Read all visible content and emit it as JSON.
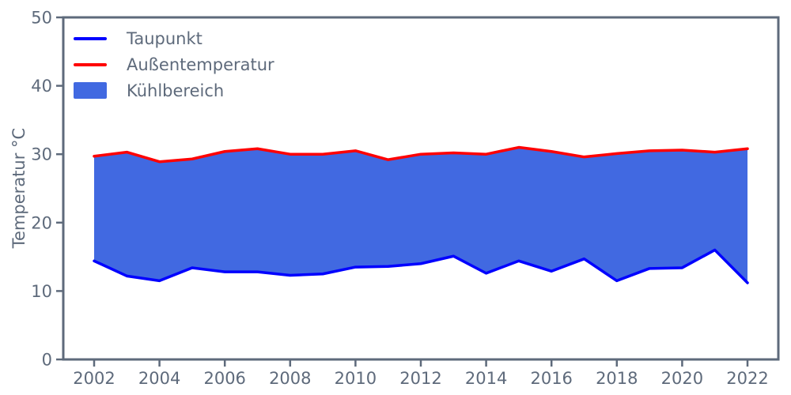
{
  "figure": {
    "background": "#ffffff",
    "axis_color": "#5e6a7b",
    "text_color": "#5e6a7b"
  },
  "chart_data": {
    "type": "area",
    "title": "",
    "xlabel": "",
    "ylabel": "Temperatur °C",
    "x": [
      2002,
      2003,
      2004,
      2005,
      2006,
      2007,
      2008,
      2009,
      2010,
      2011,
      2012,
      2013,
      2014,
      2015,
      2016,
      2017,
      2018,
      2019,
      2020,
      2021,
      2022
    ],
    "series": [
      {
        "name": "Taupunkt",
        "color": "#0000ff",
        "values": [
          14.4,
          12.2,
          11.5,
          13.4,
          12.8,
          12.8,
          12.3,
          12.5,
          13.5,
          13.6,
          14.0,
          15.1,
          12.6,
          14.4,
          12.9,
          14.7,
          11.5,
          13.3,
          13.4,
          16.0,
          11.2
        ]
      },
      {
        "name": "Außentemperatur",
        "color": "#ff0000",
        "values": [
          29.7,
          30.3,
          28.9,
          29.3,
          30.4,
          30.8,
          30.0,
          30.0,
          30.5,
          29.2,
          30.0,
          30.2,
          30.0,
          31.0,
          30.4,
          29.6,
          30.1,
          30.5,
          30.6,
          30.3,
          30.8
        ]
      }
    ],
    "fill_between": {
      "name": "Kühlbereich",
      "color": "#4169e1"
    },
    "legend": [
      "Taupunkt",
      "Außentemperatur",
      "Kühlbereich"
    ],
    "legend_position": "upper-left",
    "xticks": [
      2002,
      2004,
      2006,
      2008,
      2010,
      2012,
      2014,
      2016,
      2018,
      2020,
      2022
    ],
    "yticks": [
      0,
      10,
      20,
      30,
      40,
      50
    ],
    "ylim": [
      0,
      50
    ],
    "xlim": [
      2002,
      2022
    ],
    "grid": false
  }
}
